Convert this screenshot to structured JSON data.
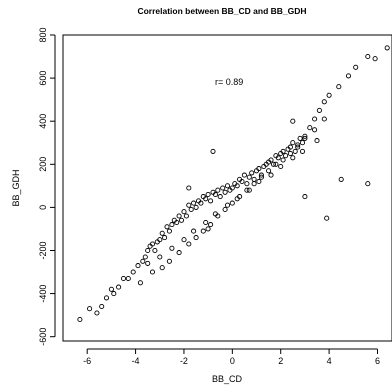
{
  "chart_data": {
    "type": "scatter",
    "title": "Correlation between BB_CD and BB_GDH",
    "xlabel": "BB_CD",
    "ylabel": "BB_GDH",
    "xlim": [
      -7,
      6.6
    ],
    "ylim": [
      -620,
      800
    ],
    "x_ticks": [
      "-6",
      "-4",
      "-2",
      "0",
      "2",
      "4",
      "6"
    ],
    "y_ticks": [
      "-600",
      "-400",
      "-200",
      "0",
      "200",
      "400",
      "600",
      "800"
    ],
    "annotation": "r= 0.89",
    "grid": false,
    "legend": "none",
    "marker": "open-circle",
    "colors": {
      "points": "#000000",
      "axes": "#000000"
    },
    "series": [
      {
        "x": [
          -6.3,
          -5.9,
          -5.6,
          -5.4,
          -5.2,
          -5.0,
          -4.9,
          -4.7,
          -4.5,
          -4.3,
          -4.1,
          -3.9,
          -3.7,
          -3.6,
          -3.5,
          -3.4,
          -3.3,
          -3.2,
          -3.1,
          -3.0,
          -2.9,
          -2.8,
          -2.7,
          -2.6,
          -2.5,
          -2.4,
          -2.3,
          -2.2,
          -2.1,
          -2.0,
          -1.9,
          -1.8,
          -1.7,
          -1.6,
          -1.5,
          -1.4,
          -1.3,
          -1.2,
          -1.1,
          -1.0,
          -0.9,
          -0.8,
          -0.7,
          -0.6,
          -0.5,
          -0.4,
          -0.3,
          -0.2,
          -0.1,
          0.0,
          0.1,
          0.2,
          0.3,
          0.4,
          0.5,
          0.6,
          0.7,
          0.8,
          0.9,
          1.0,
          1.1,
          1.2,
          1.3,
          1.4,
          1.5,
          1.6,
          1.7,
          1.8,
          1.9,
          2.0,
          2.1,
          2.2,
          2.3,
          2.4,
          2.5,
          2.6,
          2.7,
          2.8,
          2.9,
          3.0,
          3.2,
          3.4,
          3.6,
          3.8,
          4.0,
          4.4,
          4.8,
          5.1,
          5.6,
          5.9,
          6.4,
          -3.8,
          -3.3,
          -2.9,
          -2.6,
          -2.2,
          -1.8,
          -1.5,
          -1.2,
          -0.9,
          -0.6,
          -0.3,
          0.0,
          0.3,
          0.6,
          0.9,
          1.2,
          1.5,
          1.8,
          2.1,
          2.4,
          2.7,
          3.0,
          3.4,
          3.8,
          -3.5,
          -3.0,
          -2.5,
          -2.0,
          -1.6,
          -1.1,
          -0.7,
          -0.2,
          0.2,
          0.7,
          1.1,
          1.6,
          2.0,
          2.5,
          2.9,
          3.5,
          -1.8,
          -1.0,
          2.5,
          3.0,
          3.9,
          4.5,
          5.6,
          -0.8
        ],
        "y": [
          -520,
          -470,
          -490,
          -460,
          -420,
          -380,
          -400,
          -370,
          -330,
          -330,
          -300,
          -270,
          -250,
          -230,
          -200,
          -180,
          -170,
          -200,
          -160,
          -150,
          -120,
          -140,
          -90,
          -110,
          -80,
          -60,
          -70,
          -40,
          -60,
          -20,
          -40,
          10,
          -10,
          20,
          0,
          30,
          20,
          50,
          40,
          60,
          30,
          70,
          60,
          80,
          50,
          90,
          70,
          100,
          80,
          90,
          110,
          100,
          130,
          120,
          150,
          110,
          140,
          160,
          130,
          170,
          180,
          150,
          190,
          200,
          210,
          220,
          200,
          240,
          230,
          250,
          260,
          240,
          270,
          280,
          300,
          260,
          280,
          320,
          300,
          330,
          370,
          410,
          450,
          490,
          520,
          560,
          610,
          650,
          700,
          690,
          740,
          -350,
          -300,
          -280,
          -250,
          -210,
          -170,
          -140,
          -110,
          -80,
          -40,
          -10,
          20,
          50,
          80,
          110,
          140,
          170,
          200,
          220,
          250,
          290,
          320,
          360,
          410,
          -260,
          -230,
          -190,
          -150,
          -110,
          -70,
          -30,
          10,
          40,
          80,
          120,
          150,
          190,
          230,
          260,
          310,
          90,
          -100,
          400,
          50,
          -50,
          130,
          110,
          260
        ]
      }
    ]
  }
}
